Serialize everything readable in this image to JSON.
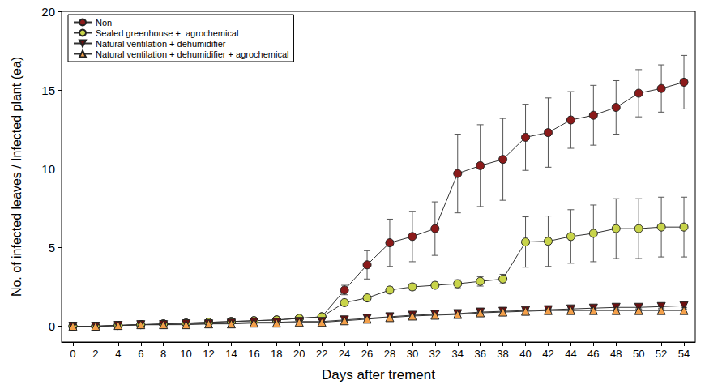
{
  "chart_data": {
    "type": "line",
    "x_label": "Days after trement",
    "y_label": "No. of infected leaves / Infected plant (ea)",
    "x": [
      0,
      2,
      4,
      6,
      8,
      10,
      12,
      14,
      16,
      18,
      20,
      22,
      24,
      26,
      28,
      30,
      32,
      34,
      36,
      38,
      40,
      42,
      44,
      46,
      48,
      50,
      52,
      54
    ],
    "xlim": [
      -1,
      55
    ],
    "xticks": [
      0,
      2,
      4,
      6,
      8,
      10,
      12,
      14,
      16,
      18,
      20,
      22,
      24,
      26,
      28,
      30,
      32,
      34,
      36,
      38,
      40,
      42,
      44,
      46,
      48,
      50,
      52,
      54
    ],
    "ylim": [
      -1,
      20
    ],
    "yticks": [
      0,
      5,
      10,
      15,
      20
    ],
    "grid": false,
    "legend": "upper left",
    "series": [
      {
        "name": "Non",
        "color": "#8b1a1a",
        "marker": "circle",
        "values": [
          0,
          0,
          0.05,
          0.1,
          0.15,
          0.2,
          0.25,
          0.3,
          0.35,
          0.4,
          0.5,
          0.6,
          2.3,
          3.9,
          5.3,
          5.7,
          6.2,
          9.7,
          10.2,
          10.6,
          12.0,
          12.3,
          13.1,
          13.4,
          13.9,
          14.8,
          15.1,
          15.5
        ],
        "errors": [
          0,
          0,
          0,
          0,
          0,
          0,
          0,
          0,
          0,
          0,
          0,
          0,
          0.3,
          0.9,
          1.5,
          1.6,
          1.7,
          2.5,
          2.6,
          2.6,
          2.1,
          2.2,
          1.8,
          1.9,
          1.7,
          1.5,
          1.5,
          1.7
        ]
      },
      {
        "name": "Sealed greenhouse +  agrochemical",
        "color": "#c8d44a",
        "marker": "circle",
        "values": [
          0,
          0,
          0.05,
          0.1,
          0.15,
          0.2,
          0.25,
          0.3,
          0.35,
          0.4,
          0.5,
          0.6,
          1.5,
          1.8,
          2.3,
          2.5,
          2.6,
          2.7,
          2.85,
          3.0,
          5.35,
          5.4,
          5.7,
          5.9,
          6.2,
          6.2,
          6.3,
          6.3
        ],
        "errors": [
          0,
          0,
          0,
          0,
          0,
          0,
          0,
          0,
          0,
          0,
          0,
          0,
          0.1,
          0.15,
          0.2,
          0.2,
          0.2,
          0.25,
          0.3,
          0.3,
          1.6,
          1.6,
          1.7,
          1.8,
          1.9,
          1.9,
          1.9,
          1.9
        ]
      },
      {
        "name": "Natural ventilation + dehumidifier",
        "color": "#6b1010",
        "marker": "triangle_down",
        "values": [
          0,
          0,
          0.05,
          0.1,
          0.1,
          0.15,
          0.15,
          0.2,
          0.25,
          0.25,
          0.3,
          0.3,
          0.4,
          0.5,
          0.6,
          0.7,
          0.75,
          0.8,
          0.9,
          0.95,
          1.0,
          1.05,
          1.1,
          1.15,
          1.2,
          1.2,
          1.25,
          1.3
        ],
        "errors": [
          0,
          0,
          0,
          0,
          0,
          0,
          0,
          0,
          0,
          0,
          0,
          0,
          0.05,
          0.05,
          0.05,
          0.05,
          0.1,
          0.1,
          0.1,
          0.1,
          0.1,
          0.1,
          0.1,
          0.1,
          0.1,
          0.1,
          0.1,
          0.1
        ]
      },
      {
        "name": "Natural ventilation + dehumidifier + agrochemical",
        "color": "#f4a04a",
        "marker": "triangle_up",
        "values": [
          0,
          0,
          0.05,
          0.1,
          0.1,
          0.1,
          0.15,
          0.15,
          0.2,
          0.2,
          0.25,
          0.25,
          0.35,
          0.45,
          0.55,
          0.65,
          0.7,
          0.75,
          0.85,
          0.9,
          0.95,
          1.0,
          1.0,
          1.0,
          1.0,
          1.0,
          1.0,
          1.0
        ],
        "errors": [
          0,
          0,
          0,
          0,
          0,
          0,
          0,
          0,
          0,
          0,
          0,
          0,
          0.05,
          0.05,
          0.05,
          0.05,
          0.1,
          0.1,
          0.1,
          0.1,
          0.1,
          0.1,
          0.1,
          0.1,
          0.1,
          0.1,
          0.1,
          0.1
        ]
      }
    ]
  }
}
